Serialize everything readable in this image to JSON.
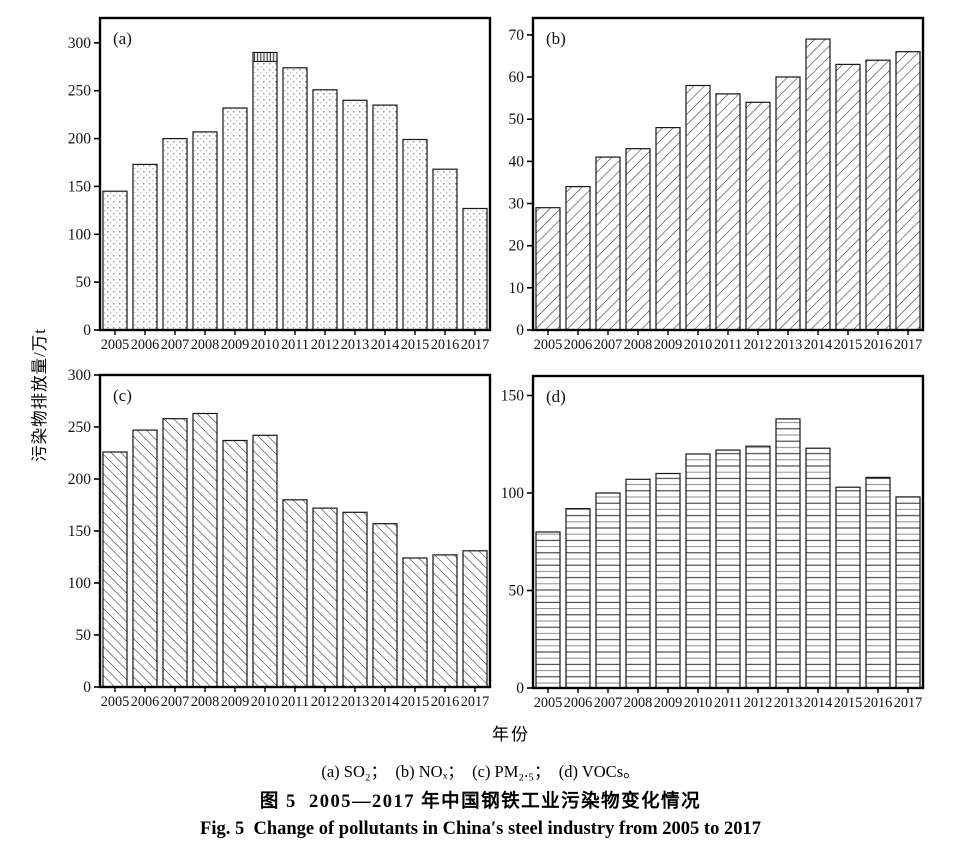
{
  "figure": {
    "x_axis_label": "年份",
    "y_axis_label": "污染物排放量/万t",
    "legend_caption": "(a) SO₂；  (b) NOₓ；  (c) PM₂.₅；  (d) VOCs。",
    "caption_zh": "图 5  2005—2017 年中国钢铁工业污染物变化情况",
    "caption_en": "Fig. 5  Change of pollutants in China′s steel industry from 2005 to 2017"
  },
  "colors": {
    "ink": "#000000",
    "bar_stroke": "#161616",
    "pattern_dark": "#2a2a2a",
    "pattern_gray": "#9a9a9a",
    "background": "#ffffff"
  },
  "chart_data": {
    "type": "bar",
    "xlabel": "年份",
    "ylabel": "污染物排放量/万t",
    "title": "2005—2017 年中国钢铁工业污染物变化情况",
    "grid": false,
    "legend_position": "below",
    "categories": [
      "2005",
      "2006",
      "2007",
      "2008",
      "2009",
      "2010",
      "2011",
      "2012",
      "2013",
      "2014",
      "2015",
      "2016",
      "2017"
    ],
    "panels": [
      {
        "label": "(a)",
        "pollutant": "SO2",
        "pattern": "dots",
        "ylim": [
          0,
          326
        ],
        "yticks": [
          0,
          50,
          100,
          150,
          200,
          250,
          300
        ],
        "values": [
          145,
          173,
          200,
          207,
          232,
          290,
          274,
          251,
          240,
          235,
          199,
          168,
          127
        ],
        "cap_bar_year": "2010"
      },
      {
        "label": "(b)",
        "pollutant": "NOx",
        "pattern": "diagonal-up",
        "ylim": [
          0,
          74
        ],
        "yticks": [
          0,
          10,
          20,
          30,
          40,
          50,
          60,
          70
        ],
        "values": [
          29,
          34,
          41,
          43,
          48,
          58,
          56,
          54,
          60,
          69,
          63,
          64,
          66
        ]
      },
      {
        "label": "(c)",
        "pollutant": "PM2.5",
        "pattern": "diagonal-down",
        "ylim": [
          0,
          300
        ],
        "yticks": [
          0,
          50,
          100,
          150,
          200,
          250,
          300
        ],
        "values": [
          226,
          247,
          258,
          263,
          237,
          242,
          180,
          172,
          168,
          157,
          124,
          127,
          131
        ]
      },
      {
        "label": "(d)",
        "pollutant": "VOCs",
        "pattern": "horizontal-lines",
        "ylim": [
          0,
          160
        ],
        "yticks": [
          0,
          50,
          100,
          150
        ],
        "values": [
          80,
          92,
          100,
          107,
          110,
          120,
          122,
          124,
          138,
          123,
          103,
          108,
          98
        ]
      }
    ]
  }
}
